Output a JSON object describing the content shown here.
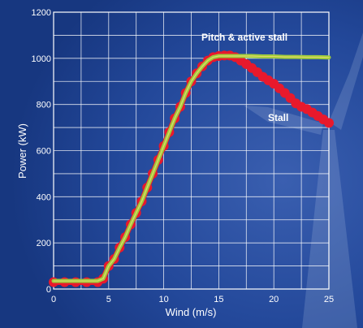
{
  "chart_data": {
    "type": "line",
    "xlabel": "Wind (m/s)",
    "ylabel": "Power (kW)",
    "xlim": [
      0,
      25
    ],
    "ylim": [
      0,
      1200
    ],
    "xticks": [
      "0",
      "5",
      "10",
      "15",
      "20",
      "25"
    ],
    "yticks": [
      "0",
      "200",
      "400",
      "600",
      "800",
      "1000",
      "1200"
    ],
    "grid": true,
    "annotations": [
      "Pitch & active stall",
      "Stall"
    ],
    "series": [
      {
        "name": "Stall",
        "color": "#e8192c",
        "x": [
          0,
          1,
          2,
          3,
          4,
          4.5,
          5,
          5.5,
          6,
          6.5,
          7,
          7.5,
          8,
          8.5,
          9,
          9.5,
          10,
          10.5,
          11,
          11.5,
          12,
          12.5,
          13,
          13.5,
          14,
          14.5,
          15,
          15.5,
          16,
          16.5,
          17,
          17.5,
          18,
          18.5,
          19,
          19.5,
          20,
          20.5,
          21,
          21.5,
          22,
          22.5,
          23,
          23.5,
          24,
          24.5,
          25
        ],
        "y": [
          30,
          30,
          30,
          30,
          30,
          45,
          100,
          130,
          180,
          225,
          280,
          330,
          380,
          440,
          500,
          560,
          620,
          680,
          740,
          790,
          850,
          900,
          935,
          965,
          990,
          1005,
          1010,
          1012,
          1012,
          1005,
          990,
          975,
          958,
          940,
          920,
          905,
          890,
          870,
          850,
          828,
          805,
          790,
          780,
          765,
          750,
          735,
          720
        ]
      },
      {
        "name": "Pitch & active stall",
        "color": "#9fcc3c",
        "x": [
          0,
          1,
          2,
          3,
          4,
          4.5,
          5,
          5.5,
          6,
          6.5,
          7,
          7.5,
          8,
          8.5,
          9,
          9.5,
          10,
          10.5,
          11,
          11.5,
          12,
          12.5,
          13,
          13.5,
          14,
          14.5,
          15,
          16,
          17,
          18,
          19,
          20,
          21,
          22,
          23,
          24,
          25
        ],
        "y": [
          35,
          35,
          35,
          35,
          35,
          45,
          100,
          130,
          180,
          225,
          280,
          330,
          380,
          440,
          500,
          560,
          620,
          680,
          740,
          790,
          850,
          900,
          935,
          965,
          990,
          1005,
          1010,
          1010,
          1010,
          1010,
          1008,
          1008,
          1006,
          1006,
          1005,
          1005,
          1004
        ]
      }
    ]
  }
}
